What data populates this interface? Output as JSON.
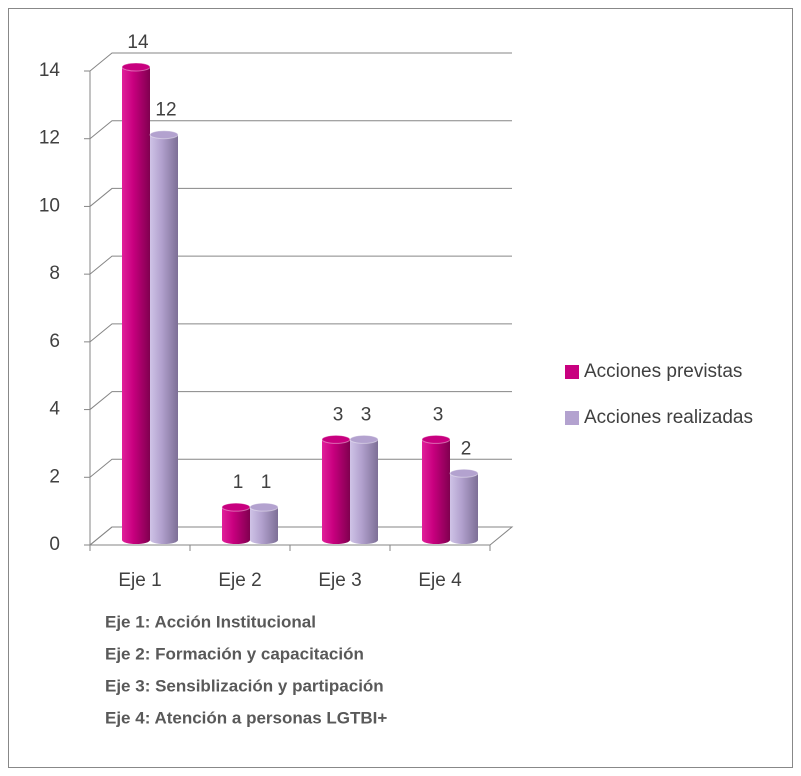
{
  "chart_data": {
    "type": "bar3d",
    "categories": [
      "Eje 1",
      "Eje 2",
      "Eje 3",
      "Eje 4"
    ],
    "series": [
      {
        "name": "Acciones previstas",
        "color": "#c8007f",
        "values": [
          14,
          1,
          3,
          3
        ]
      },
      {
        "name": "Acciones realizadas",
        "color": "#b3a2cf",
        "values": [
          12,
          1,
          3,
          2
        ]
      }
    ],
    "ylim": [
      0,
      14
    ],
    "yticks": [
      0,
      2,
      4,
      6,
      8,
      10,
      12,
      14
    ],
    "grid": true,
    "legend": "right",
    "notes": [
      "Eje 1: Acción Institucional",
      "Eje 2: Formación y capacitación",
      "Eje 3: Sensiblización y partipación",
      "Eje 4: Atención a personas LGTBI+"
    ]
  }
}
